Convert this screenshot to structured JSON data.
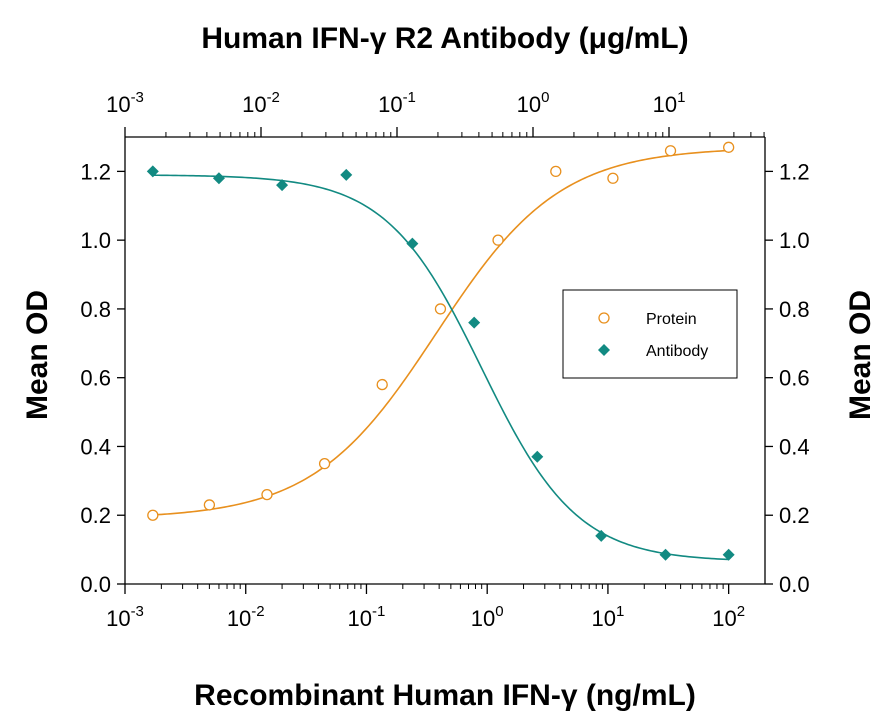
{
  "chart_data": {
    "type": "scatter",
    "title_top": "Human IFN-γ R2 Antibody (μg/mL)",
    "xlabel": "Recombinant Human IFN-γ (ng/mL)",
    "ylabel_left": "Mean OD",
    "ylabel_right": "Mean OD",
    "x_scale": "log",
    "xlim": [
      0.001,
      200
    ],
    "ylim": [
      0.0,
      1.3
    ],
    "y_ticks": [
      "0.0",
      "0.2",
      "0.4",
      "0.6",
      "0.8",
      "1.0",
      "1.2"
    ],
    "x_ticks_bottom": [
      {
        "base": "10",
        "exp": "-3"
      },
      {
        "base": "10",
        "exp": "-2"
      },
      {
        "base": "10",
        "exp": "-1"
      },
      {
        "base": "10",
        "exp": "0"
      },
      {
        "base": "10",
        "exp": "1"
      },
      {
        "base": "10",
        "exp": "2"
      }
    ],
    "x_ticks_top": [
      {
        "base": "10",
        "exp": "-3"
      },
      {
        "base": "10",
        "exp": "-2"
      },
      {
        "base": "10",
        "exp": "-1"
      },
      {
        "base": "10",
        "exp": "0"
      },
      {
        "base": "10",
        "exp": "1"
      }
    ],
    "legend_position": "right-middle",
    "series": [
      {
        "name": "Protein",
        "marker": "open-circle",
        "color": "#E8901E",
        "x": [
          0.0017,
          0.005,
          0.015,
          0.045,
          0.135,
          0.41,
          1.23,
          3.7,
          11,
          33,
          100
        ],
        "y": [
          0.2,
          0.23,
          0.26,
          0.35,
          0.58,
          0.8,
          1.0,
          1.2,
          1.18,
          1.26,
          1.27
        ],
        "fit": {
          "bottom": 0.19,
          "top": 1.27,
          "ec50": 0.38,
          "hill": 0.85
        }
      },
      {
        "name": "Antibody",
        "marker": "filled-diamond",
        "color": "#128A82",
        "x": [
          0.0017,
          0.006,
          0.02,
          0.068,
          0.24,
          0.78,
          2.6,
          8.8,
          30,
          100
        ],
        "y": [
          1.2,
          1.18,
          1.16,
          1.19,
          0.99,
          0.76,
          0.37,
          0.14,
          0.085,
          0.085
        ],
        "fit": {
          "bottom": 0.065,
          "top": 1.19,
          "ec50": 0.9,
          "hill": 1.1
        }
      }
    ]
  }
}
